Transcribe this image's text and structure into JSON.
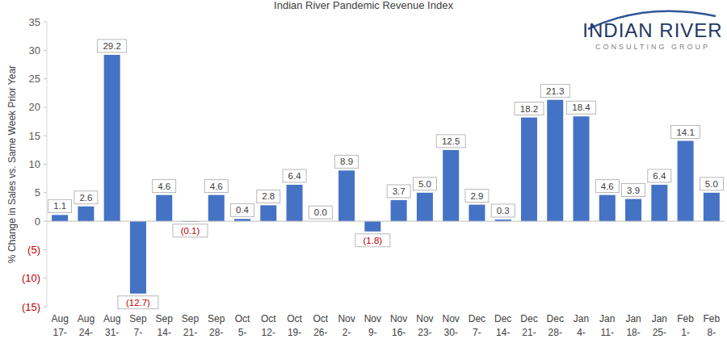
{
  "chart_data": {
    "type": "bar",
    "title": "Indian River Pandemic Revenue Index",
    "y_label": "% Change in Sales vs. Same Week Prior Year",
    "categories": [
      "Aug 17-",
      "Aug 24-",
      "Aug 31-",
      "Sep 7-",
      "Sep 14-",
      "Sep 21-",
      "Sep 28-",
      "Oct 5-",
      "Oct 12-",
      "Oct 19-",
      "Oct 26-",
      "Nov 2-",
      "Nov 9-",
      "Nov 16-",
      "Nov 23-",
      "Nov 30-",
      "Dec 7-",
      "Dec 14-",
      "Dec 21-",
      "Dec 28-",
      "Jan 4-",
      "Jan 11-",
      "Jan 18-",
      "Jan 25-",
      "Feb 1-",
      "Feb 8-"
    ],
    "values": [
      1.1,
      2.6,
      29.2,
      -12.7,
      4.6,
      -0.1,
      4.6,
      0.4,
      2.8,
      6.4,
      0.0,
      8.9,
      -1.8,
      3.7,
      5.0,
      12.5,
      2.9,
      0.3,
      18.2,
      21.3,
      18.4,
      4.6,
      3.9,
      6.4,
      14.1,
      5.0
    ],
    "value_labels": [
      "1.1",
      "2.6",
      "29.2",
      "(12.7)",
      "4.6",
      "(0.1)",
      "4.6",
      "0.4",
      "2.8",
      "6.4",
      "0.0",
      "8.9",
      "(1.8)",
      "3.7",
      "5.0",
      "12.5",
      "2.9",
      "0.3",
      "18.2",
      "21.3",
      "18.4",
      "4.6",
      "3.9",
      "6.4",
      "14.1",
      "5.0"
    ],
    "color": "#4472c4",
    "ylim": [
      -15,
      35
    ],
    "yticks": [
      {
        "value": -15,
        "label": "(15)"
      },
      {
        "value": -10,
        "label": "(10)"
      },
      {
        "value": -5,
        "label": "(5)"
      },
      0,
      5,
      10,
      15,
      20,
      25,
      30,
      35
    ],
    "grid": false,
    "data_labels": true
  },
  "logo": {
    "name": "INDIAN RIVER",
    "tagline": "CONSULTING GROUP"
  }
}
